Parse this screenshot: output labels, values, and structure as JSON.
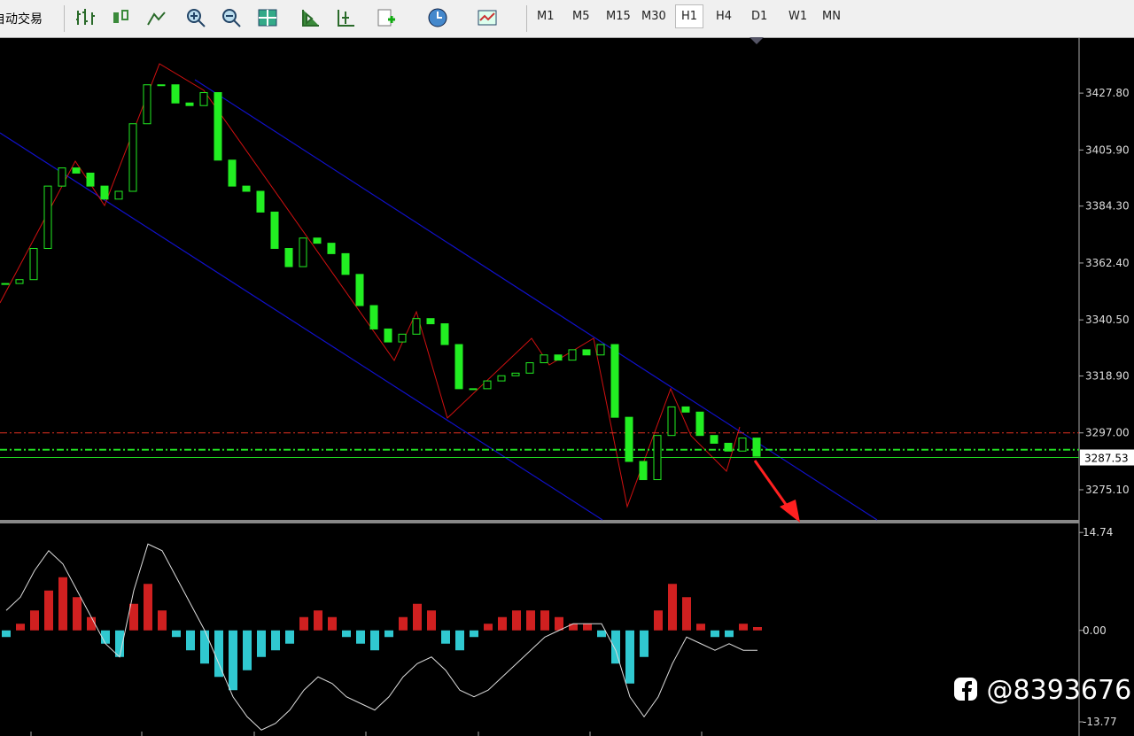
{
  "toolbar": {
    "auto_trade": "自动交易",
    "timeframes": [
      "M1",
      "M5",
      "M15",
      "M30",
      "H1",
      "H4",
      "D1",
      "W1",
      "MN"
    ],
    "active": 4
  },
  "price_chart": {
    "ylim": [
      3263.5,
      3448.3
    ],
    "yticks": [
      {
        "value": 3427.8,
        "label": "3427.80"
      },
      {
        "value": 3405.9,
        "label": "3405.90"
      },
      {
        "value": 3384.3,
        "label": "3384.30"
      },
      {
        "value": 3362.4,
        "label": "3362.40"
      },
      {
        "value": 3340.5,
        "label": "3340.50"
      },
      {
        "value": 3318.9,
        "label": "3318.90"
      },
      {
        "value": 3297,
        "label": "3297.00"
      },
      {
        "value": 3275.1,
        "label": "3275.10"
      }
    ],
    "current_price": 3287.53,
    "levels": [
      {
        "value": 3297,
        "color": "#e03020"
      },
      {
        "value": 3290.5,
        "color": "#22dd22"
      }
    ],
    "candle_color": "#22ee22",
    "closes": [
      3354.5,
      3356,
      3368,
      3392,
      3399,
      3397,
      3392,
      3387,
      3390,
      3416,
      3431,
      3431,
      3424,
      3423,
      3428,
      3402,
      3392,
      3390,
      3382,
      3368,
      3361,
      3372,
      3370,
      3366,
      3358,
      3346,
      3337,
      3332,
      3335,
      3341,
      3339,
      3331,
      3314,
      3314,
      3317,
      3319,
      3320,
      3324,
      3327,
      3325,
      3329,
      3327,
      3331,
      3303,
      3286,
      3279,
      3296,
      3307,
      3305,
      3296,
      3293,
      3290,
      3295,
      3288
    ]
  },
  "macd": {
    "ylim": [
      -15.5,
      16.1
    ],
    "yticks": [
      14.74,
      {
        "value": 0,
        "label": "0.00"
      },
      -13.77
    ],
    "positive_color": "#d02020",
    "negative_color": "#30c8d0",
    "line_color": "#dddddd",
    "histogram": [
      -1,
      1,
      3,
      6,
      8,
      5,
      2,
      -2,
      -4,
      4,
      7,
      3,
      -1,
      -3,
      -5,
      -7,
      -9,
      -6,
      -4,
      -3,
      -2,
      2,
      3,
      2,
      -1,
      -2,
      -3,
      -1,
      2,
      4,
      3,
      -2,
      -3,
      -1,
      1,
      2,
      3,
      3,
      3,
      2,
      1,
      1,
      -1,
      -5,
      -8,
      -4,
      3,
      7,
      5,
      1,
      -1,
      -1,
      1,
      0.5
    ],
    "line": [
      3,
      5,
      9,
      12,
      10,
      6,
      2,
      -2,
      -4,
      6,
      13,
      12,
      8,
      4,
      0,
      -5,
      -10,
      -13,
      -15,
      -14,
      -12,
      -9,
      -7,
      -8,
      -10,
      -11,
      -12,
      -10,
      -7,
      -5,
      -4,
      -6,
      -9,
      -10,
      -9,
      -7,
      -5,
      -3,
      -1,
      0,
      1,
      1,
      1,
      -3,
      -10,
      -13,
      -10,
      -5,
      -1,
      -2,
      -3,
      -2,
      -3,
      -3
    ]
  },
  "watermark": "@8393676"
}
